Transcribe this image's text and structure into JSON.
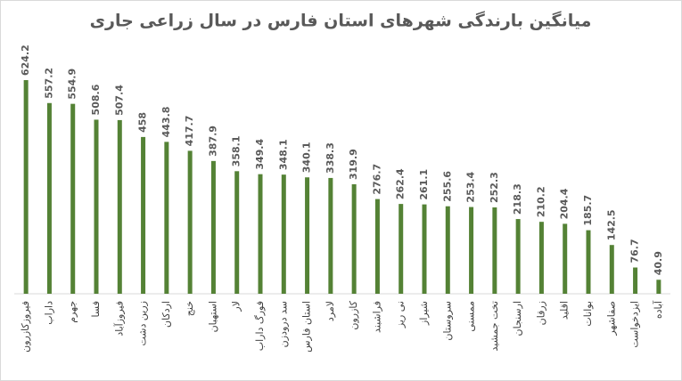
{
  "chart_data": {
    "type": "bar",
    "title": "میانگین بارندگی شهرهای استان فارس در سال زراعی جاری",
    "categories": [
      "فیروزکازرون",
      "داراب",
      "جهرم",
      "فسا",
      "فیروزآباد",
      "زرین دشت",
      "اردکان",
      "خنج",
      "استهبان",
      "لار",
      "فورگ داراب",
      "سد درودزن",
      "استان فارس",
      "لامرد",
      "کازرون",
      "فراشبند",
      "نی ریز",
      "شیراز",
      "سروستان",
      "ممسنی",
      "تخت جمشید",
      "ارسنجان",
      "زرقان",
      "اقلید",
      "بوانات",
      "صفاشهر",
      "ایزدخواست",
      "آباده"
    ],
    "values": [
      624.2,
      557.2,
      554.9,
      508.6,
      507.4,
      458,
      443.8,
      417.7,
      387.9,
      358.1,
      349.4,
      348.1,
      340.1,
      338.3,
      319.9,
      276.7,
      262.4,
      261.1,
      255.6,
      253.4,
      252.3,
      218.3,
      210.2,
      204.4,
      185.7,
      142.5,
      76.7,
      40.9
    ],
    "color": "#548235"
  }
}
